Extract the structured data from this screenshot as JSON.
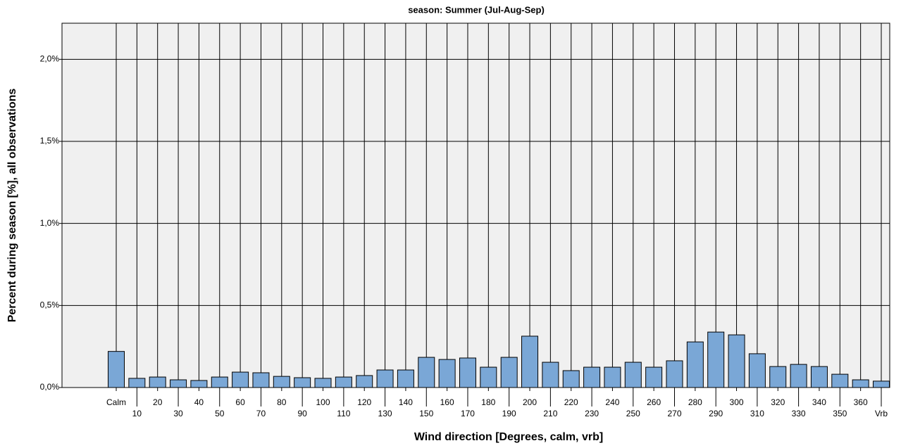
{
  "chart_data": {
    "type": "bar",
    "title": "season: Summer (Jul-Aug-Sep)",
    "x_label": "Wind direction [Degrees, calm, vrb]",
    "y_label": "Percent during season [%], all observations",
    "categories": [
      "Calm",
      "10",
      "20",
      "30",
      "40",
      "50",
      "60",
      "70",
      "80",
      "90",
      "100",
      "110",
      "120",
      "130",
      "140",
      "150",
      "160",
      "170",
      "180",
      "190",
      "200",
      "210",
      "220",
      "230",
      "240",
      "250",
      "260",
      "270",
      "280",
      "290",
      "300",
      "310",
      "320",
      "330",
      "340",
      "350",
      "360",
      "Vrb"
    ],
    "values": [
      0.22,
      0.056,
      0.064,
      0.047,
      0.043,
      0.064,
      0.094,
      0.09,
      0.068,
      0.06,
      0.056,
      0.064,
      0.073,
      0.107,
      0.107,
      0.184,
      0.171,
      0.18,
      0.124,
      0.184,
      0.313,
      0.154,
      0.103,
      0.124,
      0.124,
      0.154,
      0.124,
      0.163,
      0.278,
      0.338,
      0.321,
      0.206,
      0.128,
      0.141,
      0.128,
      0.081,
      0.047,
      0.039
    ],
    "color": "#7aa7d6",
    "ylim": [
      0,
      2.22
    ],
    "yticks": [
      {
        "value": 0,
        "label": "0,0%"
      },
      {
        "value": 0.5,
        "label": "0,5%"
      },
      {
        "value": 1.0,
        "label": "1,0%"
      },
      {
        "value": 1.5,
        "label": "1,5%"
      },
      {
        "value": 2.0,
        "label": "2,0%"
      }
    ],
    "grid": true
  }
}
